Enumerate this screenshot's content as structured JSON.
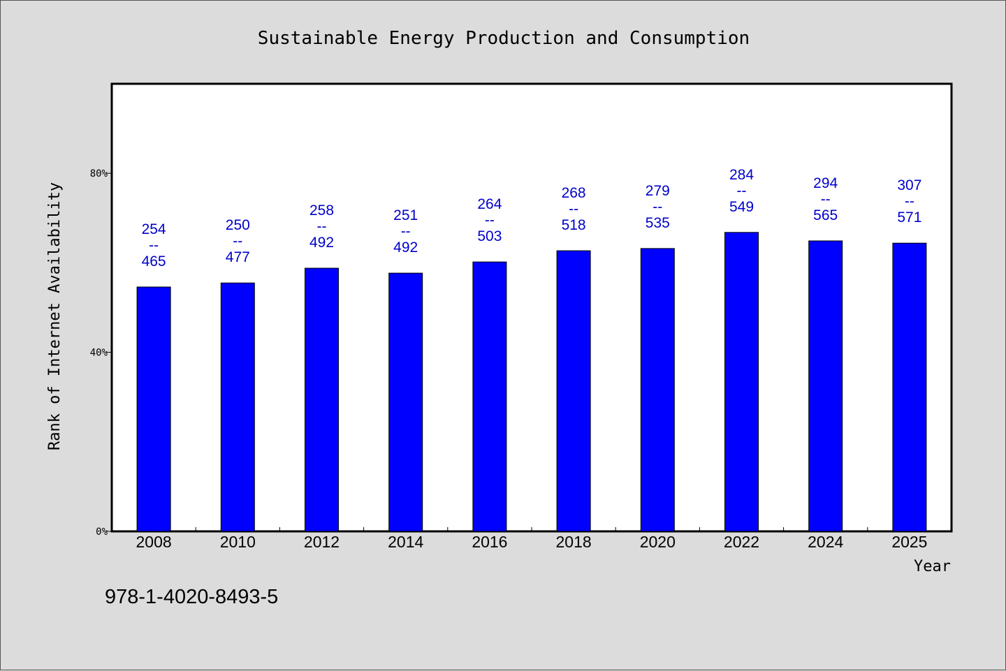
{
  "chart_data": {
    "type": "bar",
    "title": "Sustainable Energy Production and Consumption",
    "xlabel": "Year",
    "ylabel": "Rank of Internet Availability",
    "categories": [
      "2008",
      "2010",
      "2012",
      "2014",
      "2016",
      "2018",
      "2020",
      "2022",
      "2024",
      "2025"
    ],
    "values": [
      54.6,
      55.5,
      58.8,
      57.7,
      60.2,
      62.7,
      63.2,
      66.8,
      64.9,
      64.4
    ],
    "value_unit": "%",
    "data_labels": [
      {
        "top": "254",
        "sep": "--",
        "bottom": "465"
      },
      {
        "top": "250",
        "sep": "--",
        "bottom": "477"
      },
      {
        "top": "258",
        "sep": "--",
        "bottom": "492"
      },
      {
        "top": "251",
        "sep": "--",
        "bottom": "492"
      },
      {
        "top": "264",
        "sep": "--",
        "bottom": "503"
      },
      {
        "top": "268",
        "sep": "--",
        "bottom": "518"
      },
      {
        "top": "279",
        "sep": "--",
        "bottom": "535"
      },
      {
        "top": "284",
        "sep": "--",
        "bottom": "549"
      },
      {
        "top": "294",
        "sep": "--",
        "bottom": "565"
      },
      {
        "top": "307",
        "sep": "--",
        "bottom": "571"
      }
    ],
    "ylim": [
      0,
      100
    ],
    "yticks": [
      {
        "value": 0,
        "label": "0%"
      },
      {
        "value": 40,
        "label": "40%"
      },
      {
        "value": 80,
        "label": "80%"
      }
    ],
    "grid": false,
    "legend": "none",
    "bar_color": "#0000ff",
    "label_color": "#0000cc",
    "background_color": "#dcdcdc",
    "plot_background_color": "#ffffff"
  },
  "footer_text": "978-1-4020-8493-5"
}
